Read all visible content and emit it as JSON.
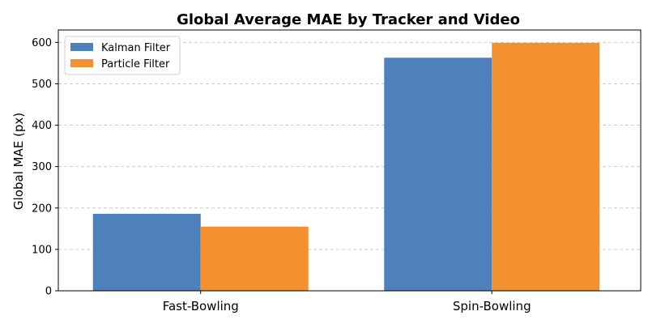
{
  "chart_data": {
    "type": "bar",
    "title": "Global Average MAE by Tracker and Video",
    "xlabel": "",
    "ylabel": "Global MAE (px)",
    "categories": [
      "Fast-Bowling",
      "Spin-Bowling"
    ],
    "series": [
      {
        "name": "Kalman Filter",
        "values": [
          186,
          563
        ],
        "color": "#4e80bc"
      },
      {
        "name": "Particle Filter",
        "values": [
          155,
          599
        ],
        "color": "#f39130"
      }
    ],
    "ylim": [
      0,
      630
    ],
    "yticks": [
      0,
      100,
      200,
      300,
      400,
      500,
      600
    ],
    "grid": "y-dashed",
    "legend": "top-left"
  }
}
